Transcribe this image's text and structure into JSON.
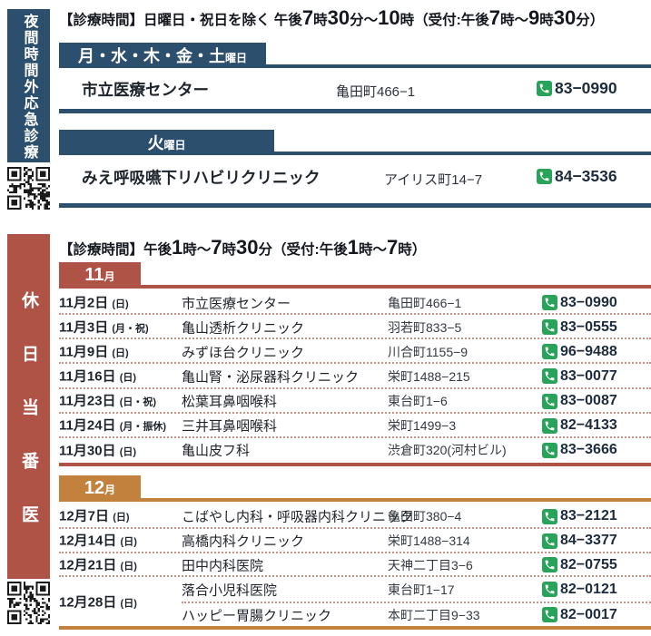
{
  "colors": {
    "blue": "#2d4f6e",
    "red": "#b05347",
    "orange": "#c2823e",
    "green": "#29a35a",
    "dotted_line": "#c49488"
  },
  "icons": {
    "phone": "phone-icon",
    "qr_night": "qr-code",
    "qr_holiday": "qr-code"
  },
  "night": {
    "sidebar_label": "夜間時間外応急診療",
    "schedule_note": "【診療時間】日曜日・祝日を除く 午後7時30分～10時（受付:午後7時～9時30分）",
    "groups": [
      {
        "tab_main": "月・水・木・金・土",
        "tab_suffix": "曜日",
        "entries": [
          {
            "name": "市立医療センター",
            "address": "亀田町466−1",
            "phone": "83−0990"
          }
        ]
      },
      {
        "tab_main": "火",
        "tab_suffix": "曜日",
        "entries": [
          {
            "name": "みえ呼吸嚥下リハビリクリニック",
            "address": "アイリス町14−7",
            "phone": "84−3536"
          }
        ]
      }
    ]
  },
  "holiday": {
    "sidebar_label": "休日当番医",
    "schedule_note": "【診療時間】午後1時～7時30分（受付:午後1時～7時）",
    "months": [
      {
        "tab_main": "11",
        "tab_suffix": "月",
        "accent": "#b05347",
        "rows": [
          {
            "date": "11月2日",
            "day": "(日)",
            "clinics": [
              {
                "name": "市立医療センター",
                "address": "亀田町466−1",
                "phone": "83−0990"
              }
            ]
          },
          {
            "date": "11月3日",
            "day": "(月・祝)",
            "clinics": [
              {
                "name": "亀山透析クリニック",
                "address": "羽若町833−5",
                "phone": "83−0555"
              }
            ]
          },
          {
            "date": "11月9日",
            "day": "(日)",
            "clinics": [
              {
                "name": "みずほ台クリニック",
                "address": "川合町1155−9",
                "phone": "96−9488"
              }
            ]
          },
          {
            "date": "11月16日",
            "day": "(日)",
            "clinics": [
              {
                "name": "亀山腎・泌尿器科クリニック",
                "address": "栄町1488−215",
                "phone": "83−0077"
              }
            ]
          },
          {
            "date": "11月23日",
            "day": "(日・祝)",
            "clinics": [
              {
                "name": "松葉耳鼻咽喉科",
                "address": "東台町1−6",
                "phone": "83−0087"
              }
            ]
          },
          {
            "date": "11月24日",
            "day": "(月・振休)",
            "clinics": [
              {
                "name": "三井耳鼻咽喉科",
                "address": "栄町1499−3",
                "phone": "82−4133"
              }
            ]
          },
          {
            "date": "11月30日",
            "day": "(日)",
            "clinics": [
              {
                "name": "亀山皮フ科",
                "address": "渋倉町320(河村ビル)",
                "phone": "83−3666"
              }
            ]
          }
        ]
      },
      {
        "tab_main": "12",
        "tab_suffix": "月",
        "accent": "#c2823e",
        "rows": [
          {
            "date": "12月7日",
            "day": "(日)",
            "clinics": [
              {
                "name": "こばやし内科・呼吸器内科クリニック",
                "address": "亀田町380−4",
                "phone": "83−2121"
              }
            ]
          },
          {
            "date": "12月14日",
            "day": "(日)",
            "clinics": [
              {
                "name": "高橋内科クリニック",
                "address": "栄町1488−314",
                "phone": "84−3377"
              }
            ]
          },
          {
            "date": "12月21日",
            "day": "(日)",
            "clinics": [
              {
                "name": "田中内科医院",
                "address": "天神二丁目3−6",
                "phone": "82−0755"
              }
            ]
          },
          {
            "date": "12月28日",
            "day": "(日)",
            "clinics": [
              {
                "name": "落合小児科医院",
                "address": "東台町1−17",
                "phone": "82−0121"
              },
              {
                "name": "ハッピー胃腸クリニック",
                "address": "本町二丁目9−33",
                "phone": "82−0017"
              }
            ]
          }
        ]
      }
    ]
  }
}
